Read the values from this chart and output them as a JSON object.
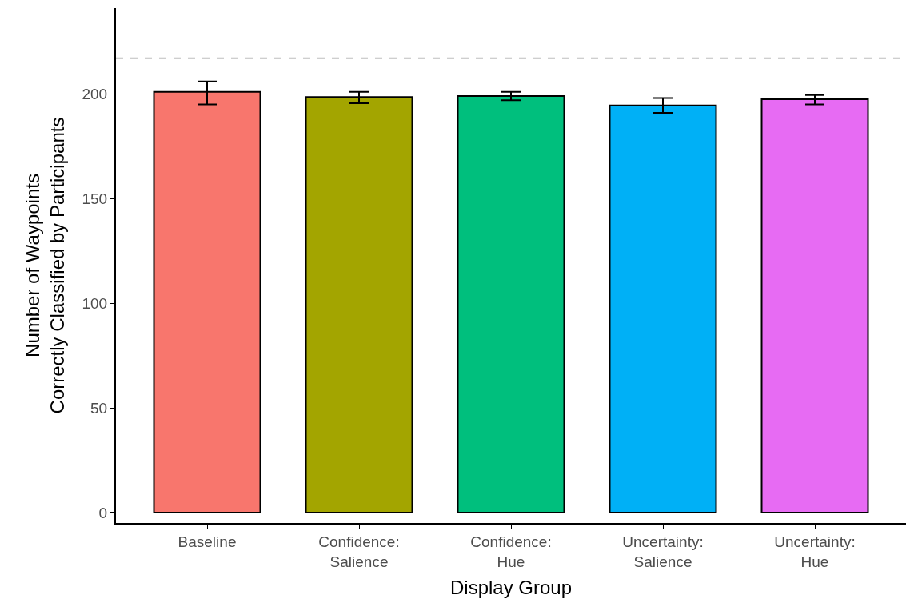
{
  "chart_data": {
    "type": "bar",
    "xlabel": "Display Group",
    "ylabel": "Number of Waypoints\nCorrectly Classified by Participants",
    "categories": [
      "Baseline",
      "Confidence:\nSalience",
      "Confidence:\nHue",
      "Uncertainty:\nSalience",
      "Uncertainty:\nHue"
    ],
    "values": [
      201,
      198.5,
      199,
      194.5,
      197.5
    ],
    "colors": [
      "#f8766d",
      "#a3a500",
      "#00bf7d",
      "#00b0f6",
      "#e76bf3"
    ],
    "errors": [
      [
        195,
        206
      ],
      [
        195.5,
        201
      ],
      [
        197,
        201
      ],
      [
        191,
        198
      ],
      [
        195,
        199.5
      ]
    ],
    "ylim": [
      -5,
      241
    ],
    "yticks": [
      0,
      50,
      100,
      150,
      200
    ],
    "ref_lines": [
      {
        "axis": "y",
        "value": 217,
        "color": "#bebebe",
        "line_style": "dashed"
      }
    ]
  }
}
